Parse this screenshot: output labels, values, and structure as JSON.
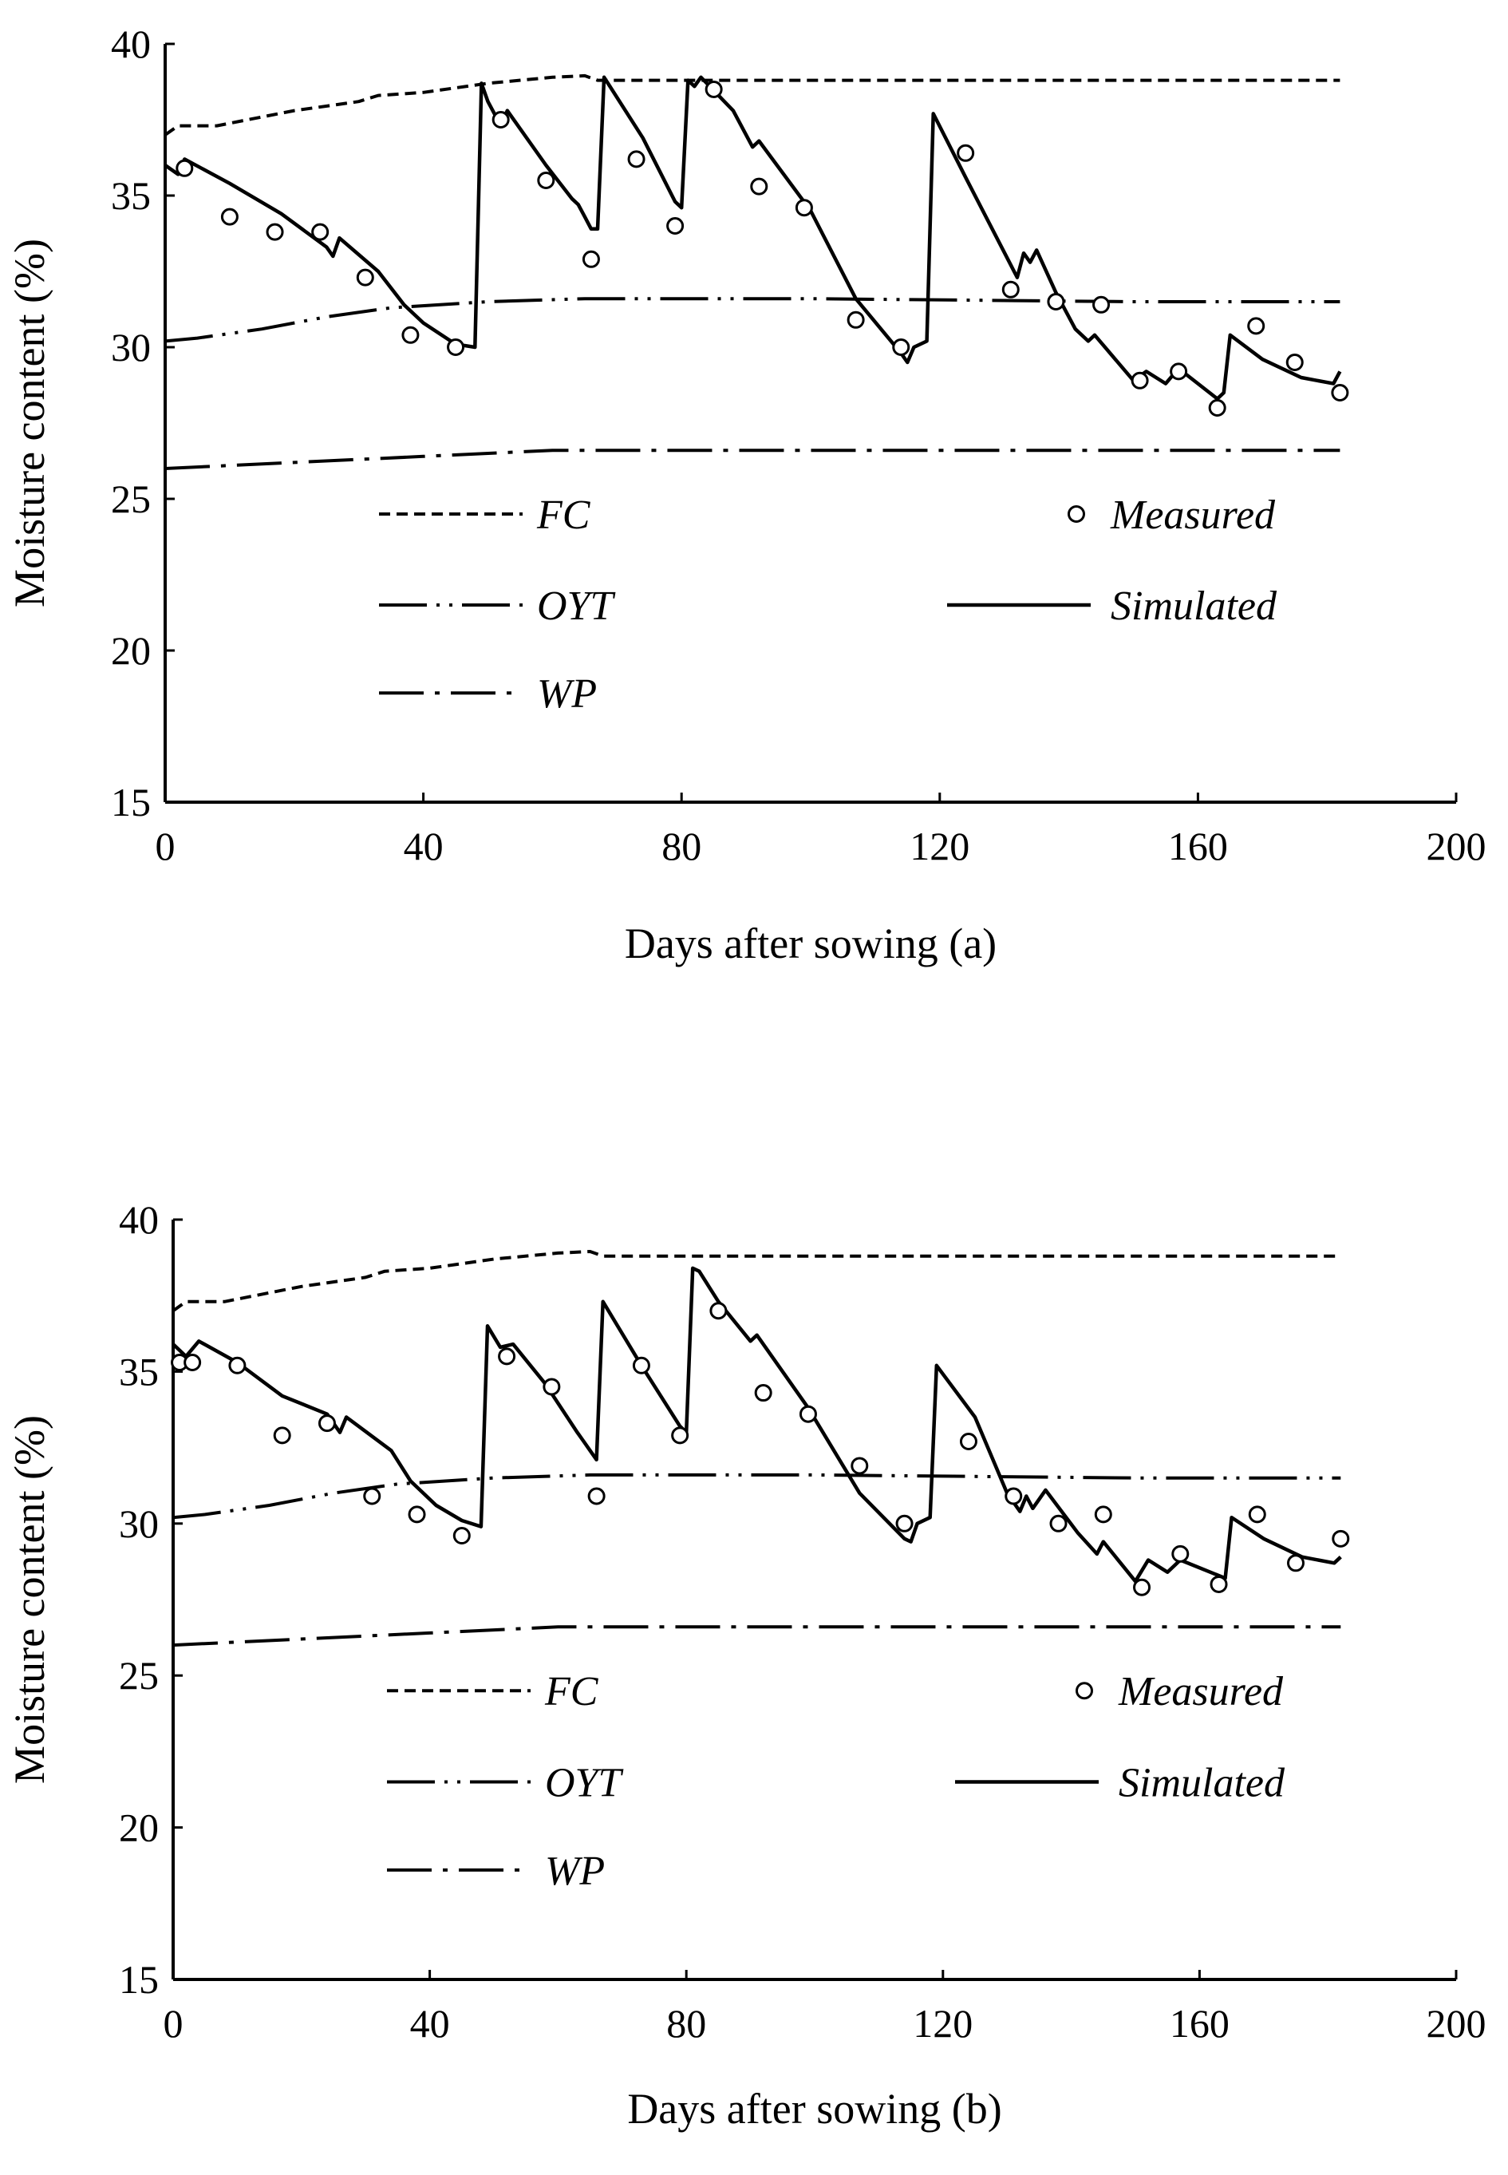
{
  "chart_data": [
    {
      "type": "line",
      "panel_label": "(a)",
      "xlabel": "Days after sowing",
      "ylabel": "Moisture content (%)",
      "xlim": [
        0,
        200
      ],
      "ylim": [
        15,
        40
      ],
      "xticks": [
        0,
        40,
        80,
        120,
        160,
        200
      ],
      "yticks": [
        15,
        20,
        25,
        30,
        35,
        40
      ],
      "legend": [
        "FC",
        "Measured",
        "OYT",
        "Simulated",
        "WP"
      ],
      "series": [
        {
          "name": "FC",
          "style": "dashed",
          "points": [
            [
              0,
              37.0
            ],
            [
              2,
              37.3
            ],
            [
              8,
              37.3
            ],
            [
              20,
              37.8
            ],
            [
              30,
              38.1
            ],
            [
              33,
              38.3
            ],
            [
              40,
              38.4
            ],
            [
              50,
              38.7
            ],
            [
              60,
              38.9
            ],
            [
              65,
              38.95
            ],
            [
              67,
              38.8
            ],
            [
              100,
              38.8
            ],
            [
              150,
              38.8
            ],
            [
              182,
              38.8
            ]
          ]
        },
        {
          "name": "OYT",
          "style": "dash-dot-dot",
          "points": [
            [
              0,
              30.2
            ],
            [
              5,
              30.3
            ],
            [
              15,
              30.6
            ],
            [
              25,
              31.0
            ],
            [
              35,
              31.3
            ],
            [
              50,
              31.5
            ],
            [
              65,
              31.6
            ],
            [
              100,
              31.6
            ],
            [
              150,
              31.5
            ],
            [
              182,
              31.5
            ]
          ]
        },
        {
          "name": "WP",
          "style": "dash-dot",
          "points": [
            [
              0,
              26.0
            ],
            [
              20,
              26.2
            ],
            [
              40,
              26.4
            ],
            [
              60,
              26.6
            ],
            [
              100,
              26.6
            ],
            [
              150,
              26.6
            ],
            [
              182,
              26.6
            ]
          ]
        },
        {
          "name": "Simulated",
          "style": "solid",
          "points": [
            [
              0,
              36.0
            ],
            [
              2,
              35.7
            ],
            [
              3,
              36.2
            ],
            [
              10,
              35.4
            ],
            [
              18,
              34.4
            ],
            [
              25,
              33.3
            ],
            [
              26,
              33.0
            ],
            [
              27,
              33.6
            ],
            [
              33,
              32.5
            ],
            [
              37,
              31.4
            ],
            [
              40,
              30.8
            ],
            [
              45,
              30.1
            ],
            [
              48,
              30.0
            ],
            [
              49,
              38.7
            ],
            [
              50,
              38.1
            ],
            [
              52,
              37.3
            ],
            [
              53,
              37.8
            ],
            [
              59,
              36.0
            ],
            [
              63,
              34.9
            ],
            [
              64,
              34.7
            ],
            [
              65,
              34.3
            ],
            [
              66,
              33.9
            ],
            [
              67,
              33.9
            ],
            [
              68,
              38.9
            ],
            [
              74,
              36.9
            ],
            [
              79,
              34.8
            ],
            [
              80,
              34.6
            ],
            [
              81,
              38.8
            ],
            [
              82,
              38.6
            ],
            [
              83,
              38.9
            ],
            [
              88,
              37.8
            ],
            [
              91,
              36.6
            ],
            [
              92,
              36.8
            ],
            [
              100,
              34.5
            ],
            [
              107,
              31.6
            ],
            [
              114,
              29.8
            ],
            [
              115,
              29.5
            ],
            [
              116,
              30.0
            ],
            [
              118,
              30.2
            ],
            [
              119,
              37.7
            ],
            [
              124,
              35.6
            ],
            [
              132,
              32.3
            ],
            [
              133,
              33.1
            ],
            [
              134,
              32.8
            ],
            [
              135,
              33.2
            ],
            [
              138,
              31.8
            ],
            [
              141,
              30.6
            ],
            [
              143,
              30.2
            ],
            [
              144,
              30.4
            ],
            [
              150,
              28.9
            ],
            [
              152,
              29.2
            ],
            [
              155,
              28.8
            ],
            [
              157,
              29.3
            ],
            [
              163,
              28.3
            ],
            [
              164,
              28.5
            ],
            [
              165,
              30.4
            ],
            [
              170,
              29.6
            ],
            [
              176,
              29.0
            ],
            [
              181,
              28.8
            ],
            [
              182,
              29.2
            ]
          ]
        },
        {
          "name": "Measured",
          "style": "markers",
          "points": [
            [
              3,
              35.9
            ],
            [
              10,
              34.3
            ],
            [
              17,
              33.8
            ],
            [
              24,
              33.8
            ],
            [
              31,
              32.3
            ],
            [
              38,
              30.4
            ],
            [
              45,
              30.0
            ],
            [
              52,
              37.5
            ],
            [
              59,
              35.5
            ],
            [
              66,
              32.9
            ],
            [
              73,
              36.2
            ],
            [
              79,
              34.0
            ],
            [
              85,
              38.5
            ],
            [
              92,
              35.3
            ],
            [
              99,
              34.6
            ],
            [
              107,
              30.9
            ],
            [
              114,
              30.0
            ],
            [
              124,
              36.4
            ],
            [
              131,
              31.9
            ],
            [
              138,
              31.5
            ],
            [
              145,
              31.4
            ],
            [
              151,
              28.9
            ],
            [
              157,
              29.2
            ],
            [
              163,
              28.0
            ],
            [
              169,
              30.7
            ],
            [
              175,
              29.5
            ],
            [
              182,
              28.5
            ]
          ]
        }
      ]
    },
    {
      "type": "line",
      "panel_label": "(b)",
      "xlabel": "Days after sowing",
      "ylabel": "Moisture content (%)",
      "xlim": [
        0,
        200
      ],
      "ylim": [
        15,
        40
      ],
      "xticks": [
        0,
        40,
        80,
        120,
        160,
        200
      ],
      "yticks": [
        15,
        20,
        25,
        30,
        35,
        40
      ],
      "legend": [
        "FC",
        "Measured",
        "OYT",
        "Simulated",
        "WP"
      ],
      "series": [
        {
          "name": "FC",
          "style": "dashed",
          "points": [
            [
              0,
              37.0
            ],
            [
              2,
              37.3
            ],
            [
              8,
              37.3
            ],
            [
              20,
              37.8
            ],
            [
              30,
              38.1
            ],
            [
              33,
              38.3
            ],
            [
              40,
              38.4
            ],
            [
              50,
              38.7
            ],
            [
              60,
              38.9
            ],
            [
              65,
              38.95
            ],
            [
              67,
              38.8
            ],
            [
              100,
              38.8
            ],
            [
              150,
              38.8
            ],
            [
              182,
              38.8
            ]
          ]
        },
        {
          "name": "OYT",
          "style": "dash-dot-dot",
          "points": [
            [
              0,
              30.2
            ],
            [
              5,
              30.3
            ],
            [
              15,
              30.6
            ],
            [
              25,
              31.0
            ],
            [
              35,
              31.3
            ],
            [
              50,
              31.5
            ],
            [
              65,
              31.6
            ],
            [
              100,
              31.6
            ],
            [
              150,
              31.5
            ],
            [
              182,
              31.5
            ]
          ]
        },
        {
          "name": "WP",
          "style": "dash-dot",
          "points": [
            [
              0,
              26.0
            ],
            [
              20,
              26.2
            ],
            [
              40,
              26.4
            ],
            [
              60,
              26.6
            ],
            [
              100,
              26.6
            ],
            [
              150,
              26.6
            ],
            [
              182,
              26.6
            ]
          ]
        },
        {
          "name": "Simulated",
          "style": "solid",
          "points": [
            [
              0,
              35.9
            ],
            [
              2,
              35.5
            ],
            [
              4,
              36.0
            ],
            [
              10,
              35.3
            ],
            [
              17,
              34.2
            ],
            [
              24,
              33.6
            ],
            [
              26,
              33.0
            ],
            [
              27,
              33.5
            ],
            [
              34,
              32.4
            ],
            [
              37,
              31.4
            ],
            [
              41,
              30.6
            ],
            [
              45,
              30.1
            ],
            [
              48,
              29.9
            ],
            [
              49,
              36.5
            ],
            [
              51,
              35.8
            ],
            [
              53,
              35.9
            ],
            [
              58,
              34.6
            ],
            [
              63,
              33.0
            ],
            [
              64,
              32.7
            ],
            [
              65,
              32.4
            ],
            [
              66,
              32.1
            ],
            [
              67,
              37.3
            ],
            [
              73,
              35.2
            ],
            [
              79,
              33.2
            ],
            [
              80,
              33.0
            ],
            [
              81,
              38.4
            ],
            [
              82,
              38.3
            ],
            [
              85,
              37.3
            ],
            [
              90,
              36.0
            ],
            [
              91,
              36.2
            ],
            [
              99,
              33.8
            ],
            [
              107,
              31.0
            ],
            [
              114,
              29.5
            ],
            [
              115,
              29.4
            ],
            [
              116,
              30.0
            ],
            [
              118,
              30.2
            ],
            [
              119,
              35.2
            ],
            [
              125,
              33.5
            ],
            [
              130,
              31.0
            ],
            [
              132,
              30.4
            ],
            [
              133,
              30.9
            ],
            [
              134,
              30.5
            ],
            [
              136,
              31.1
            ],
            [
              141,
              29.7
            ],
            [
              144,
              29.0
            ],
            [
              145,
              29.4
            ],
            [
              150,
              28.1
            ],
            [
              152,
              28.8
            ],
            [
              155,
              28.4
            ],
            [
              157,
              28.8
            ],
            [
              164,
              28.2
            ],
            [
              165,
              30.2
            ],
            [
              170,
              29.5
            ],
            [
              176,
              28.9
            ],
            [
              181,
              28.7
            ],
            [
              182,
              28.9
            ]
          ]
        },
        {
          "name": "Measured",
          "style": "markers",
          "points": [
            [
              1,
              35.3
            ],
            [
              3,
              35.3
            ],
            [
              10,
              35.2
            ],
            [
              17,
              32.9
            ],
            [
              24,
              33.3
            ],
            [
              31,
              30.9
            ],
            [
              38,
              30.3
            ],
            [
              45,
              29.6
            ],
            [
              52,
              35.5
            ],
            [
              59,
              34.5
            ],
            [
              66,
              30.9
            ],
            [
              73,
              35.2
            ],
            [
              79,
              32.9
            ],
            [
              85,
              37.0
            ],
            [
              92,
              34.3
            ],
            [
              99,
              33.6
            ],
            [
              107,
              31.9
            ],
            [
              114,
              30.0
            ],
            [
              124,
              32.7
            ],
            [
              131,
              30.9
            ],
            [
              138,
              30.0
            ],
            [
              145,
              30.3
            ],
            [
              151,
              27.9
            ],
            [
              157,
              29.0
            ],
            [
              163,
              28.0
            ],
            [
              169,
              30.3
            ],
            [
              175,
              28.7
            ],
            [
              182,
              29.5
            ]
          ]
        }
      ]
    }
  ]
}
